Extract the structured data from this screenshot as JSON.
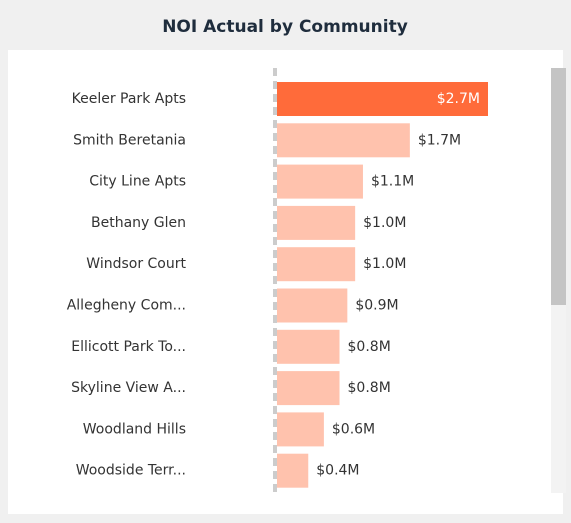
{
  "chart_data": {
    "type": "bar",
    "orientation": "horizontal",
    "title": "NOI Actual by Community",
    "categories": [
      "Keeler Park Apts",
      "Smith Beretania",
      "City Line Apts",
      "Bethany Glen",
      "Windsor Court",
      "Allegheny Com...",
      "Ellicott Park To...",
      "Skyline View A...",
      "Woodland Hills",
      "Woodside Terr..."
    ],
    "values": [
      2.7,
      1.7,
      1.1,
      1.0,
      1.0,
      0.9,
      0.8,
      0.8,
      0.6,
      0.4
    ],
    "value_labels": [
      "$2.7M",
      "$1.7M",
      "$1.1M",
      "$1.0M",
      "$1.0M",
      "$0.9M",
      "$0.8M",
      "$0.8M",
      "$0.6M",
      "$0.4M"
    ],
    "colors": [
      "#FF6B3A",
      "#FFC2AD",
      "#FFC2AD",
      "#FFC2AD",
      "#FFC2AD",
      "#FFC2AD",
      "#FFC2AD",
      "#FFC2AD",
      "#FFC2AD",
      "#FFC2AD"
    ]
  }
}
